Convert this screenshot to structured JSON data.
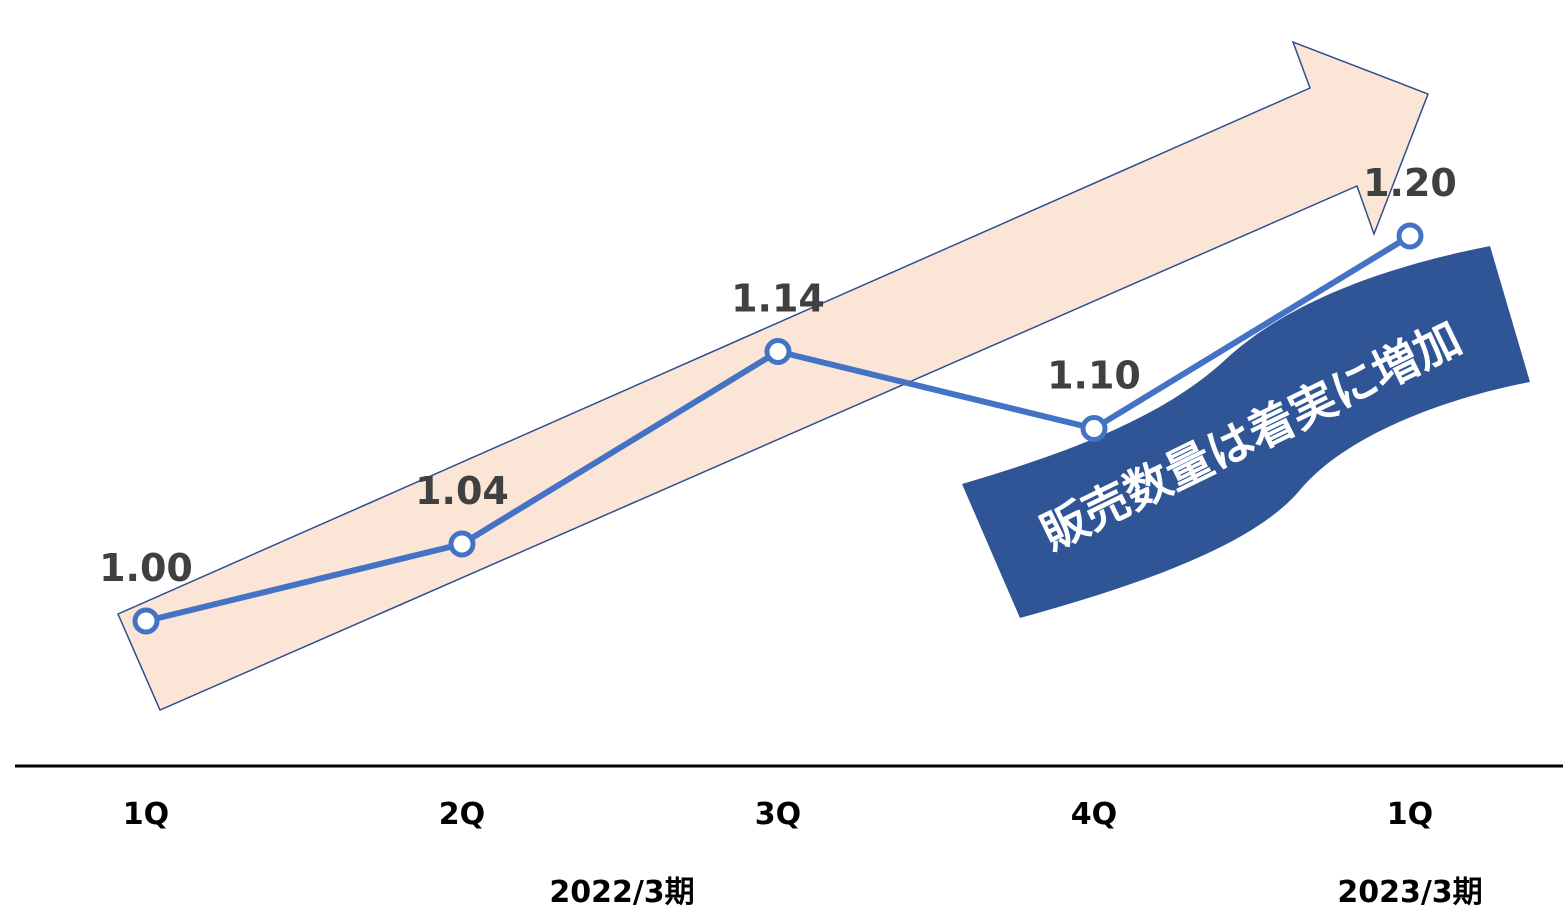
{
  "chart_data": {
    "type": "line",
    "categories": [
      "1Q",
      "2Q",
      "3Q",
      "4Q",
      "1Q"
    ],
    "values": [
      1.0,
      1.04,
      1.14,
      1.1,
      1.2
    ],
    "value_labels": [
      "1.00",
      "1.04",
      "1.14",
      "1.10",
      "1.20"
    ],
    "period_groups": [
      "2022/3期",
      "2023/3期"
    ],
    "annotation": "販売数量は着実に増加",
    "title": "",
    "xlabel": "",
    "ylabel": "",
    "ylim": [
      0.96,
      1.22
    ],
    "grid": false,
    "legend": "none"
  },
  "colors": {
    "line": "#4472C4",
    "marker_fill": "#ffffff",
    "arrow_fill": "#FBE5D6",
    "arrow_stroke": "#2F4F8F",
    "banner_fill": "#2F5597",
    "axis": "#000000",
    "data_label": "#404040"
  }
}
